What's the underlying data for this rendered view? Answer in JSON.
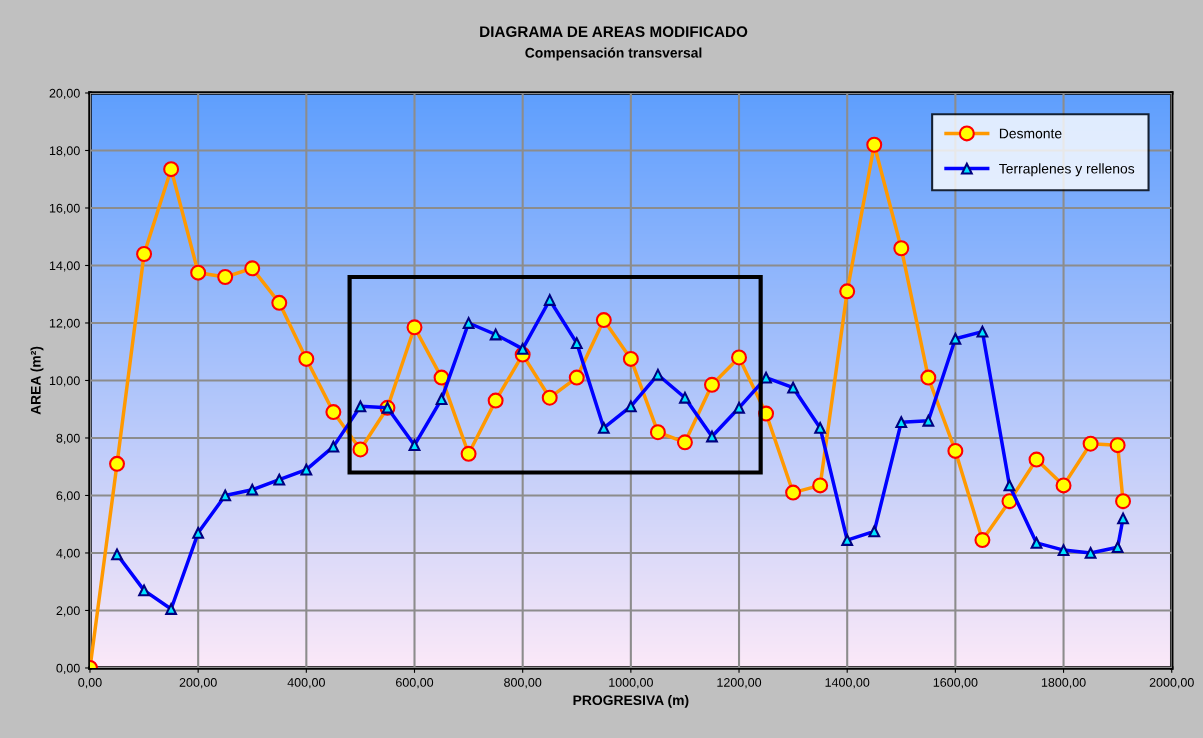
{
  "chart_data": {
    "type": "line",
    "title": "DIAGRAMA DE AREAS MODIFICADO",
    "subtitle": "Compensación transversal",
    "xlabel": "PROGRESIVA (m)",
    "ylabel": "AREA (m²)",
    "series": [
      {
        "name": "Desmonte",
        "color": "#ff9900",
        "marker": "circle",
        "x": [
          0,
          50,
          100,
          150,
          200,
          250,
          300,
          350,
          400,
          450,
          500,
          550,
          600,
          650,
          700,
          750,
          800,
          850,
          900,
          950,
          1000,
          1050,
          1100,
          1150,
          1200,
          1250,
          1300,
          1350,
          1400,
          1450,
          1500,
          1550,
          1600,
          1650,
          1700,
          1750,
          1800,
          1850,
          1900,
          1910
        ],
        "values": [
          0,
          7.1,
          14.4,
          17.35,
          13.75,
          13.6,
          13.9,
          12.7,
          10.75,
          8.9,
          7.6,
          9.05,
          11.85,
          10.1,
          7.45,
          9.3,
          10.9,
          9.4,
          10.1,
          12.1,
          10.75,
          8.2,
          7.85,
          9.85,
          10.8,
          8.85,
          6.1,
          6.35,
          13.1,
          18.2,
          14.6,
          10.1,
          7.55,
          4.45,
          5.8,
          7.25,
          6.35,
          7.8,
          7.75,
          5.8
        ]
      },
      {
        "name": "Terraplenes y rellenos",
        "color": "#0000ff",
        "marker": "triangle",
        "x": [
          50,
          100,
          150,
          200,
          250,
          300,
          350,
          400,
          450,
          500,
          550,
          600,
          650,
          700,
          750,
          800,
          850,
          900,
          950,
          1000,
          1050,
          1100,
          1150,
          1200,
          1250,
          1300,
          1350,
          1400,
          1450,
          1500,
          1550,
          1600,
          1650,
          1700,
          1750,
          1800,
          1850,
          1900,
          1910
        ],
        "values": [
          3.95,
          2.7,
          2.05,
          4.7,
          6.0,
          6.2,
          6.55,
          6.9,
          7.7,
          9.1,
          9.05,
          7.75,
          9.35,
          12.0,
          11.6,
          11.1,
          12.8,
          11.3,
          8.35,
          9.1,
          10.2,
          9.4,
          8.05,
          9.05,
          10.1,
          9.75,
          8.35,
          4.45,
          4.75,
          8.55,
          8.6,
          11.45,
          11.7,
          6.35,
          4.35,
          4.1,
          4.0,
          4.2,
          5.2
        ]
      }
    ],
    "xlim": [
      0,
      2000
    ],
    "xticks": [
      {
        "value": 0,
        "label": "0,00"
      },
      {
        "value": 200,
        "label": "200,00"
      },
      {
        "value": 400,
        "label": "400,00"
      },
      {
        "value": 600,
        "label": "600,00"
      },
      {
        "value": 800,
        "label": "800,00"
      },
      {
        "value": 1000,
        "label": "1000,00"
      },
      {
        "value": 1200,
        "label": "1200,00"
      },
      {
        "value": 1400,
        "label": "1400,00"
      },
      {
        "value": 1600,
        "label": "1600,00"
      },
      {
        "value": 1800,
        "label": "1800,00"
      },
      {
        "value": 2000,
        "label": "2000,00"
      }
    ],
    "ylim": [
      0,
      20
    ],
    "yticks": [
      {
        "value": 0,
        "label": "0,00"
      },
      {
        "value": 2,
        "label": "2,00"
      },
      {
        "value": 4,
        "label": "4,00"
      },
      {
        "value": 6,
        "label": "6,00"
      },
      {
        "value": 8,
        "label": "8,00"
      },
      {
        "value": 10,
        "label": "10,00"
      },
      {
        "value": 12,
        "label": "12,00"
      },
      {
        "value": 14,
        "label": "14,00"
      },
      {
        "value": 16,
        "label": "16,00"
      },
      {
        "value": 18,
        "label": "18,00"
      },
      {
        "value": 20,
        "label": "20,00"
      }
    ],
    "grid": true,
    "legend": "top right",
    "line_style": "solid"
  }
}
